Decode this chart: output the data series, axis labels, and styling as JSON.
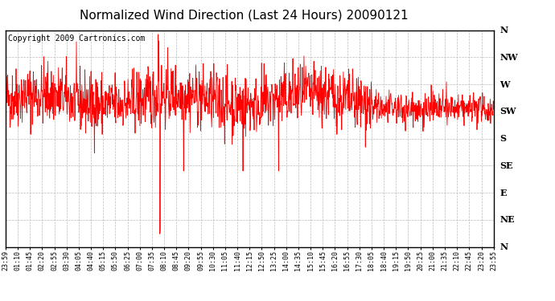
{
  "title": "Normalized Wind Direction (Last 24 Hours) 20090121",
  "copyright_text": "Copyright 2009 Cartronics.com",
  "line_color": "#ff0000",
  "bg_color": "#ffffff",
  "grid_color": "#bbbbbb",
  "ytick_labels": [
    "N",
    "NW",
    "W",
    "SW",
    "S",
    "SE",
    "E",
    "NE",
    "N"
  ],
  "ytick_values": [
    1.0,
    0.875,
    0.75,
    0.625,
    0.5,
    0.375,
    0.25,
    0.125,
    0.0
  ],
  "xtick_labels": [
    "23:59",
    "01:10",
    "01:45",
    "02:20",
    "02:55",
    "03:30",
    "04:05",
    "04:40",
    "05:15",
    "05:50",
    "06:25",
    "07:00",
    "07:35",
    "08:10",
    "08:45",
    "09:20",
    "09:55",
    "10:30",
    "11:05",
    "11:40",
    "12:15",
    "12:50",
    "13:25",
    "14:00",
    "14:35",
    "15:10",
    "15:45",
    "16:20",
    "16:55",
    "17:30",
    "18:05",
    "18:40",
    "19:15",
    "19:50",
    "20:25",
    "21:00",
    "21:35",
    "22:10",
    "22:45",
    "23:20",
    "23:55"
  ],
  "xmin": 0,
  "xmax": 1440,
  "ymin": 0.0,
  "ymax": 1.0,
  "title_fontsize": 11,
  "copyright_fontsize": 7,
  "tick_fontsize": 6,
  "ytick_fontsize": 8,
  "seed": 42
}
